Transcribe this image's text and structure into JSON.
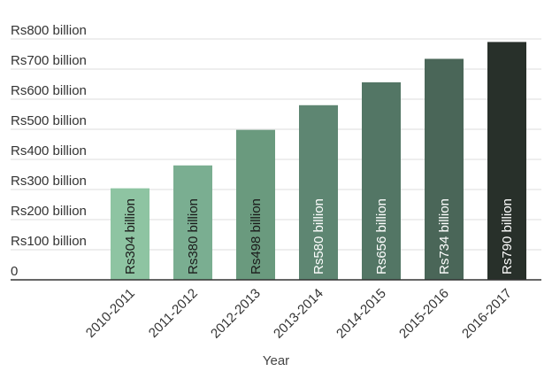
{
  "chart_data": {
    "type": "bar",
    "title": "",
    "xlabel": "Year",
    "ylabel": "",
    "ylim": [
      0,
      800
    ],
    "y_ticks": [
      0,
      100,
      200,
      300,
      400,
      500,
      600,
      700,
      800
    ],
    "y_tick_labels": [
      "0",
      "Rs100 billion",
      "Rs200 billion",
      "Rs300 billion",
      "Rs400 billion",
      "Rs500 billion",
      "Rs600 billion",
      "Rs700 billion",
      "Rs800 billion"
    ],
    "categories": [
      "2010-2011",
      "2011-2012",
      "2012-2013",
      "2013-2014",
      "2014-2015",
      "2015-2016",
      "2016-2017"
    ],
    "values": [
      304,
      380,
      498,
      580,
      656,
      734,
      790
    ],
    "data_labels": [
      "Rs304 billion",
      "Rs380 billion",
      "Rs498 billion",
      "Rs580 billion",
      "Rs656 billion",
      "Rs734 billion",
      "Rs790 billion"
    ],
    "bar_colors": [
      "#8ec4a2",
      "#7aae91",
      "#6a9a7e",
      "#5e8672",
      "#537665",
      "#4a6658",
      "#28302a"
    ],
    "label_colors": [
      "#1a1a1a",
      "#1a1a1a",
      "#1a1a1a",
      "#ffffff",
      "#ffffff",
      "#ffffff",
      "#ffffff"
    ],
    "grid": true,
    "legend": "none"
  }
}
